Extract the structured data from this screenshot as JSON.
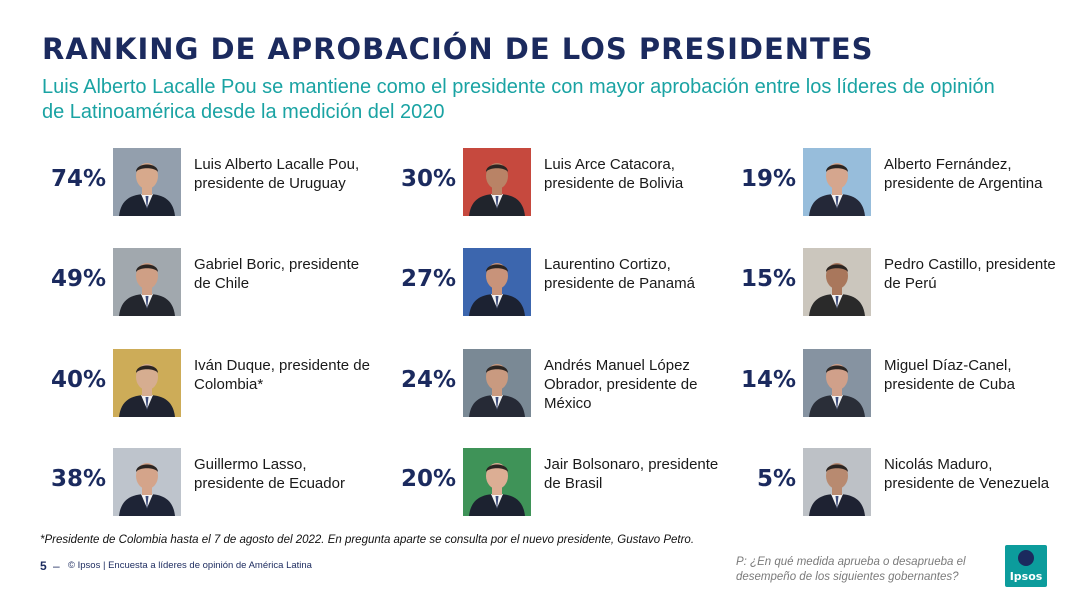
{
  "header": {
    "title": "RANKING DE APROBACIÓN DE LOS PRESIDENTES",
    "subtitle": "Luis Alberto Lacalle Pou se mantiene como el presidente con mayor aprobación entre los líderes de opinión de Latinoamérica desde la medición del 2020"
  },
  "presidents": [
    {
      "pct": "74%",
      "name": "Luis Alberto Lacalle Pou, presidente de Uruguay",
      "bg": "#8a97a6",
      "suit": "#1c2230",
      "skin": "#d7a98c"
    },
    {
      "pct": "49%",
      "name": "Gabriel Boric, presidente de Chile",
      "bg": "#9aa1a8",
      "suit": "#23262e",
      "skin": "#cf9f85"
    },
    {
      "pct": "40%",
      "name": "Iván Duque, presidente de Colombia*",
      "bg": "#c9a54a",
      "suit": "#1f2330",
      "skin": "#d6ad90"
    },
    {
      "pct": "38%",
      "name": "Guillermo Lasso, presidente de Ecuador",
      "bg": "#b9bfc8",
      "suit": "#1e2436",
      "skin": "#d4a48a"
    },
    {
      "pct": "30%",
      "name": "Luis Arce Catacora, presidente de Bolivia",
      "bg": "#c23a2e",
      "suit": "#20242c",
      "skin": "#b98366"
    },
    {
      "pct": "27%",
      "name": "Laurentino Cortizo, presidente de Panamá",
      "bg": "#2c5aa8",
      "suit": "#1c2232",
      "skin": "#c8937a"
    },
    {
      "pct": "24%",
      "name": "Andrés Manuel López Obrador, presidente de México",
      "bg": "#6f7f8c",
      "suit": "#262a36",
      "skin": "#c99a80"
    },
    {
      "pct": "20%",
      "name": "Jair Bolsonaro, presidente de Brasil",
      "bg": "#2f8a4a",
      "suit": "#1c2230",
      "skin": "#dcae94"
    },
    {
      "pct": "19%",
      "name": "Alberto Fernández, presidente de Argentina",
      "bg": "#8fb8d8",
      "suit": "#242838",
      "skin": "#d5a68e"
    },
    {
      "pct": "15%",
      "name": "Pedro Castillo, presidente de Perú",
      "bg": "#c7c2b8",
      "suit": "#2a2a2a",
      "skin": "#a9775c"
    },
    {
      "pct": "14%",
      "name": "Miguel Díaz-Canel, presidente de Cuba",
      "bg": "#7c8a9a",
      "suit": "#2a2e38",
      "skin": "#d0a08a"
    },
    {
      "pct": "5%",
      "name": "Nicolás Maduro, presidente de Venezuela",
      "bg": "#b8bcc2",
      "suit": "#1e2232",
      "skin": "#b88a70"
    }
  ],
  "footer": {
    "footnote": "*Presidente de Colombia hasta el 7 de agosto del 2022. En pregunta aparte se consulta por el nuevo presidente, Gustavo Petro.",
    "page_number": "5",
    "page_dash": "–",
    "copyright": "© Ipsos | Encuesta a líderes de opinión de América Latina",
    "question": "P: ¿En qué medida aprueba o desaprueba el desempeño de los siguientes gobernantes?",
    "logo_text": "Ipsos",
    "brand_color": "#0c9c9c"
  }
}
